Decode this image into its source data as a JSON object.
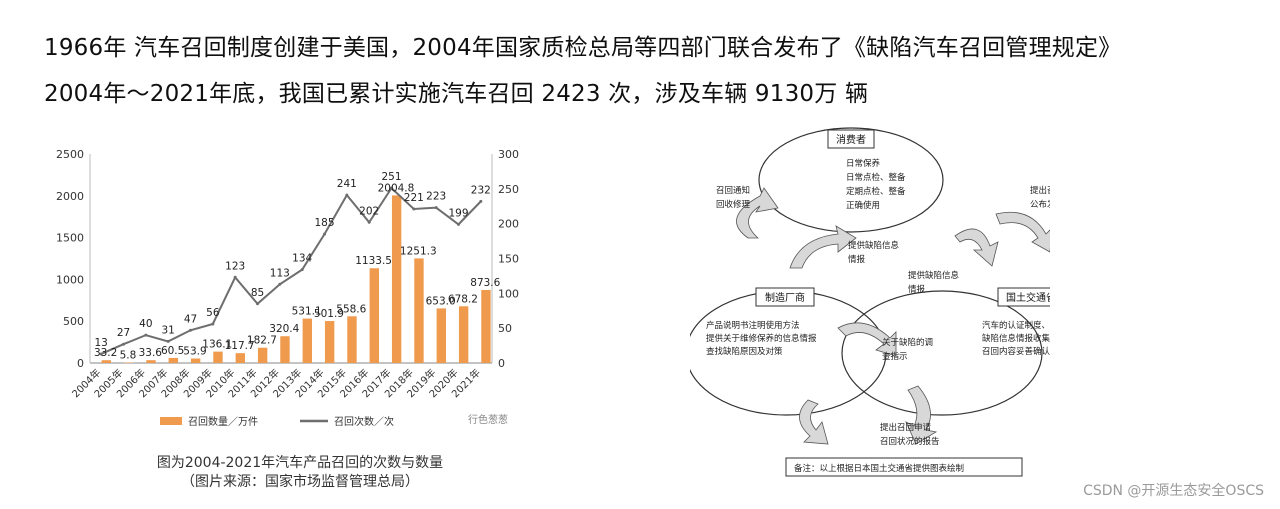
{
  "headline": {
    "line1": "1966年 汽车召回制度创建于美国，2004年国家质检总局等四部门联合发布了《缺陷汽车召回管理规定》",
    "line2": "2004年～2021年底，我国已累计实施汽车召回 2423 次，涉及车辆 9130万 辆"
  },
  "chart_data": {
    "type": "bar",
    "categories": [
      "2004年",
      "2005年",
      "2006年",
      "2007年",
      "2008年",
      "2009年",
      "2010年",
      "2011年",
      "2012年",
      "2013年",
      "2014年",
      "2015年",
      "2016年",
      "2017年",
      "2018年",
      "2019年",
      "2020年",
      "2021年"
    ],
    "series": [
      {
        "name": "召回数量／万件",
        "type": "bar",
        "axis": "left",
        "values": [
          33.2,
          5.8,
          33.6,
          60.5,
          53.9,
          136.1,
          117.7,
          182.7,
          320.4,
          531.1,
          501.9,
          558.6,
          1133.5,
          2004.8,
          1251.3,
          653.0,
          678.2,
          873.6
        ],
        "labels": [
          "33.2",
          "5.8",
          "33.6",
          "60.5",
          "53.9",
          "136.1",
          "117.7",
          "182.7",
          "320.4",
          "531.1",
          "501.9",
          "558.6",
          "1133.5",
          "2004.8",
          "1251.3",
          "653.0",
          "678.2",
          "873.6"
        ],
        "color": "#ef9a4d"
      },
      {
        "name": "召回次数／次",
        "type": "line",
        "axis": "right",
        "values": [
          13,
          27,
          40,
          31,
          47,
          56,
          123,
          85,
          113,
          134,
          185,
          241,
          202,
          251,
          221,
          223,
          199,
          232
        ],
        "labels": [
          "13",
          "27",
          "40",
          "31",
          "47",
          "56",
          "123",
          "85",
          "113",
          "134",
          "185",
          "241",
          "202",
          "251",
          "221",
          "223",
          "199",
          "232"
        ],
        "color": "#6e6e6e"
      }
    ],
    "ylim_left": [
      0,
      2500
    ],
    "yticks_left": [
      "0",
      "500",
      "1000",
      "1500",
      "2000",
      "2500"
    ],
    "ylim_right": [
      0,
      300
    ],
    "yticks_right": [
      "0",
      "50",
      "100",
      "150",
      "200",
      "250",
      "300"
    ],
    "legend_position": "bottom",
    "chart_watermark": "行色葱葱"
  },
  "caption": {
    "line1": "图为2004-2021年汽车产品召回的次数与数量",
    "line2": "（图片来源：国家市场监督管理总局）"
  },
  "diagram": {
    "nodes": {
      "consumer": "消费者",
      "manufacturer": "制造厂商",
      "ministry": "国土交通省"
    },
    "consumer_text": [
      "日常保养",
      "日常点检、整备",
      "定期点检、整备",
      "正确使用"
    ],
    "manufacturer_text": [
      "产品说明书注明使用方法",
      "提供关于维修保养的信息情报",
      "查找缺陷原因及对策"
    ],
    "ministry_text": [
      "汽车的认证制度、检查登记制度",
      "缺陷信息情报收集、分析",
      "召回内容妥善确认"
    ],
    "arrows": {
      "left_top": [
        "召回通知",
        "回收修理"
      ],
      "right_top": [
        "提出召回信息情报",
        "公布发表缺陷信息情报"
      ],
      "center_up": [
        "提供缺陷信息",
        "情报"
      ],
      "center_right": [
        "提供缺陷信息",
        "情报"
      ],
      "center_mid": [
        "关于缺陷的调",
        "查指示"
      ],
      "bottom": [
        "提出召回申请",
        "召回状况的报告"
      ]
    },
    "note": "备注：以上根据日本国土交通省提供图表绘制"
  },
  "watermark": "CSDN @开源生态安全OSCS"
}
